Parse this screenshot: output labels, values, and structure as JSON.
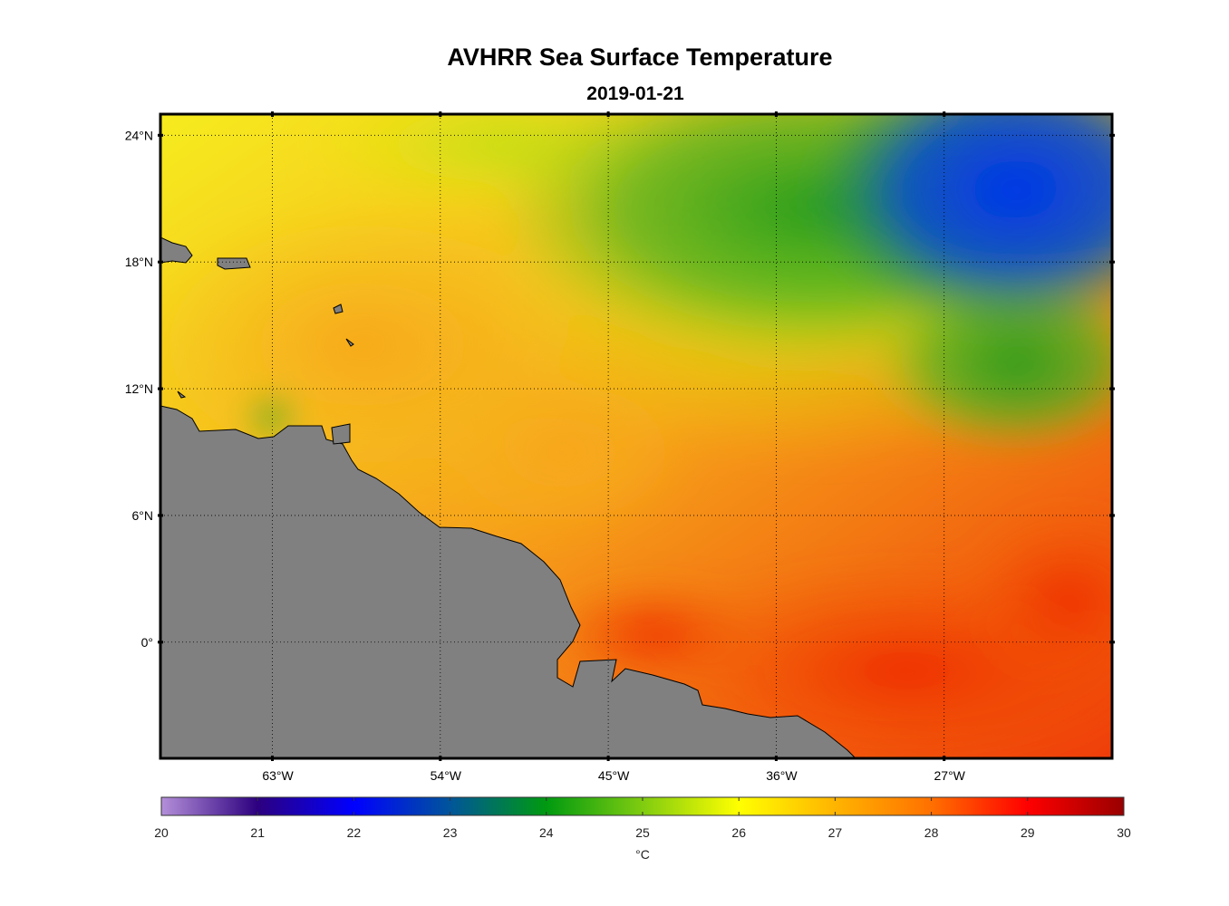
{
  "title": "AVHRR Sea Surface Temperature",
  "subtitle": "2019-01-21",
  "map": {
    "lon_range": [
      -69,
      -18
    ],
    "lat_range": [
      -5.5,
      25
    ],
    "lat_ticks": [
      {
        "value": 24,
        "label": "24°N"
      },
      {
        "value": 18,
        "label": "18°N"
      },
      {
        "value": 12,
        "label": "12°N"
      },
      {
        "value": 6,
        "label": "6°N"
      },
      {
        "value": 0,
        "label": "0°"
      }
    ],
    "lon_ticks": [
      {
        "value": -63,
        "label": "63°W"
      },
      {
        "value": -54,
        "label": "54°W"
      },
      {
        "value": -45,
        "label": "45°W"
      },
      {
        "value": -36,
        "label": "36°W"
      },
      {
        "value": -27,
        "label": "27°W"
      }
    ],
    "land_color": "#808080",
    "grid": "dotted"
  },
  "colorbar": {
    "min": 20,
    "max": 30,
    "ticks": [
      "20",
      "21",
      "22",
      "23",
      "24",
      "25",
      "26",
      "27",
      "28",
      "29",
      "30"
    ],
    "unit": "°C",
    "colors": [
      "#b48fd9",
      "#2c007f",
      "#0000ff",
      "#008000",
      "#ffff00",
      "#ff8000",
      "#ff0000",
      "#990000"
    ]
  }
}
